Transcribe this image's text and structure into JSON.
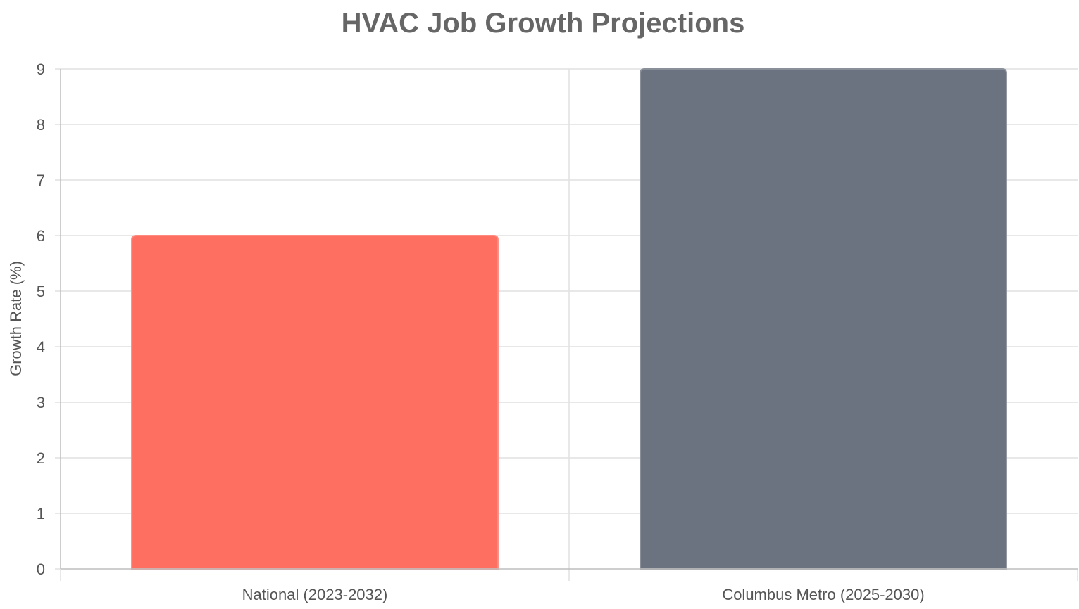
{
  "chart_data": {
    "type": "bar",
    "title": "HVAC Job Growth Projections",
    "xlabel": "",
    "ylabel": "Growth Rate (%)",
    "categories": [
      "National (2023-2032)",
      "Columbus Metro (2025-2030)"
    ],
    "values": [
      6,
      9
    ],
    "ylim": [
      0,
      9
    ],
    "yticks": [
      "0",
      "1",
      "2",
      "3",
      "4",
      "5",
      "6",
      "7",
      "8",
      "9"
    ],
    "grid": true,
    "legend": "none",
    "colors": {
      "bars": [
        "#ff6f61",
        "#6b7280"
      ],
      "bar_borders": [
        "#ff8a80",
        "#8a909a"
      ],
      "grid": "#e1e1e1",
      "axis": "#bdbdbd",
      "text": "#555555",
      "title": "#666666"
    }
  }
}
